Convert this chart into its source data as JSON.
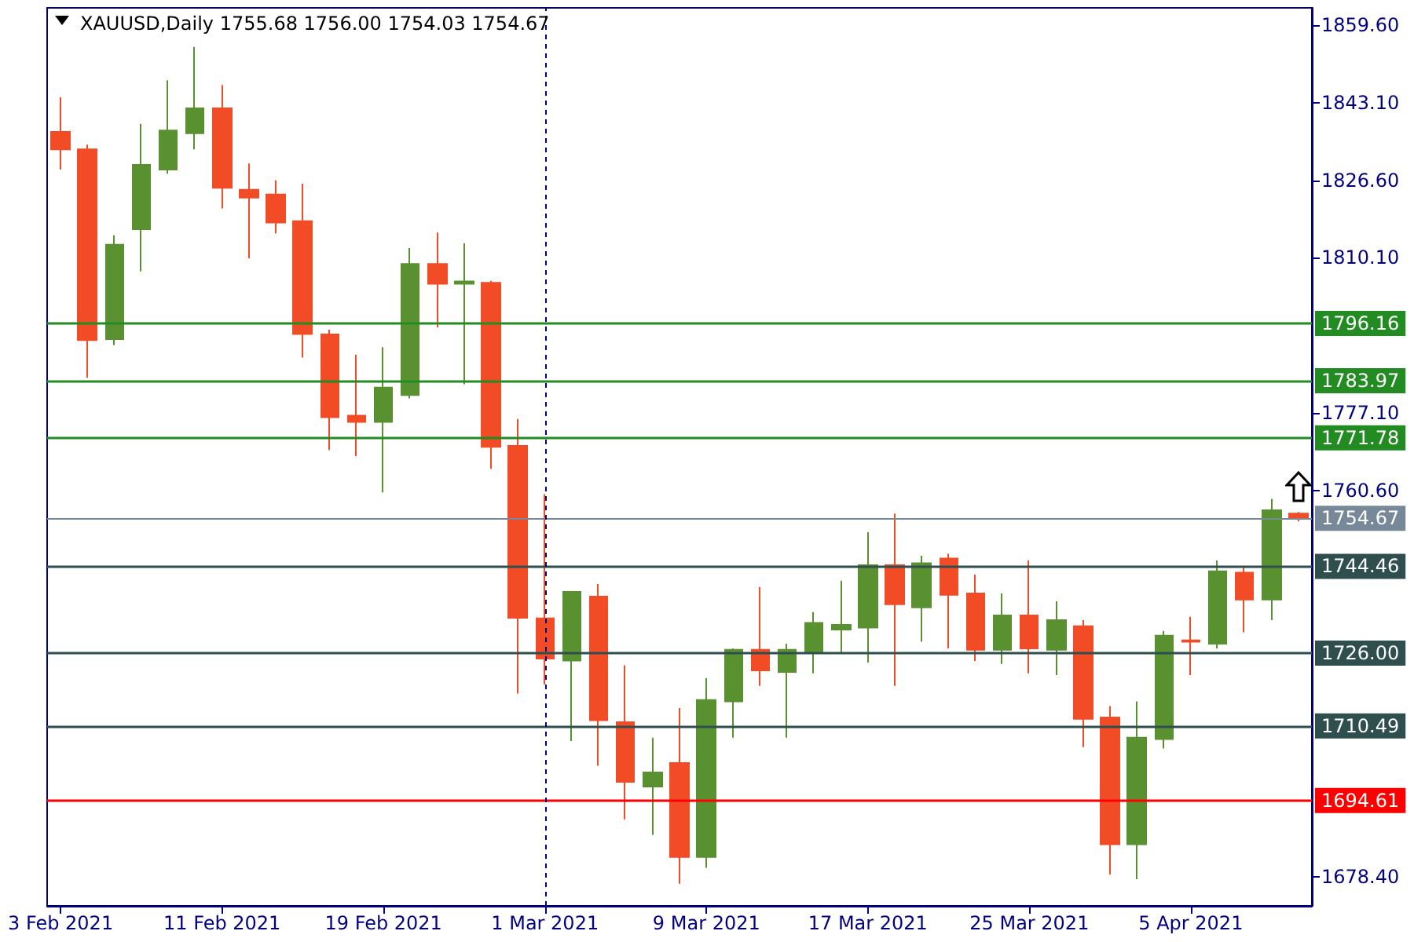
{
  "chart_data": {
    "type": "candlestick",
    "title": "XAUUSD,Daily 1755.68 1756.00 1754.03 1754.67",
    "categories": [
      "3 Feb 2021",
      null,
      null,
      null,
      null,
      null,
      "11 Feb 2021",
      null,
      null,
      null,
      null,
      null,
      "19 Feb 2021",
      null,
      null,
      null,
      null,
      null,
      "1 Mar 2021",
      null,
      null,
      null,
      null,
      null,
      "9 Mar 2021",
      null,
      null,
      null,
      null,
      null,
      "17 Mar 2021",
      null,
      null,
      null,
      null,
      null,
      "25 Mar 2021",
      null,
      null,
      null,
      null,
      null,
      "5 Apr 2021",
      null,
      null,
      null,
      null
    ],
    "ohlc": [
      [
        1836.9,
        1844.3,
        1828.9,
        1833.2
      ],
      [
        1833.2,
        1834.2,
        1784.6,
        1792.6
      ],
      [
        1792.8,
        1814.9,
        1791.5,
        1812.9
      ],
      [
        1816.2,
        1838.6,
        1807.2,
        1829.9
      ],
      [
        1828.9,
        1847.9,
        1828.0,
        1837.2
      ],
      [
        1836.6,
        1855.0,
        1833.2,
        1841.9
      ],
      [
        1841.9,
        1846.9,
        1820.6,
        1825.0
      ],
      [
        1824.6,
        1830.2,
        1810.0,
        1822.9
      ],
      [
        1823.6,
        1826.6,
        1815.3,
        1817.6
      ],
      [
        1817.9,
        1825.9,
        1788.9,
        1793.9
      ],
      [
        1793.8,
        1794.8,
        1769.2,
        1776.2
      ],
      [
        1776.5,
        1789.5,
        1767.9,
        1775.2
      ],
      [
        1775.2,
        1791.1,
        1760.2,
        1782.5
      ],
      [
        1780.9,
        1812.2,
        1780.2,
        1808.8
      ],
      [
        1808.8,
        1815.5,
        1795.3,
        1804.6
      ],
      [
        1804.6,
        1813.2,
        1783.2,
        1805.1
      ],
      [
        1804.8,
        1805.2,
        1765.2,
        1769.9
      ],
      [
        1770.1,
        1775.8,
        1717.4,
        1733.5
      ],
      [
        1733.4,
        1759.8,
        1719.3,
        1724.8
      ],
      [
        1724.4,
        1739.0,
        1707.3,
        1739.0
      ],
      [
        1738.0,
        1740.7,
        1702.0,
        1711.7
      ],
      [
        1711.3,
        1723.4,
        1690.6,
        1698.6
      ],
      [
        1697.6,
        1708.0,
        1687.3,
        1700.6
      ],
      [
        1702.6,
        1714.3,
        1676.9,
        1682.6
      ],
      [
        1682.6,
        1720.7,
        1680.3,
        1716.0
      ],
      [
        1715.7,
        1727.0,
        1708.0,
        1726.7
      ],
      [
        1726.7,
        1740.0,
        1719.0,
        1722.3
      ],
      [
        1722.0,
        1728.0,
        1708.0,
        1726.7
      ],
      [
        1726.3,
        1734.7,
        1721.7,
        1732.4
      ],
      [
        1731.0,
        1741.4,
        1726.0,
        1732.0
      ],
      [
        1731.4,
        1751.7,
        1724.0,
        1744.7
      ],
      [
        1744.7,
        1755.7,
        1719.0,
        1736.4
      ],
      [
        1735.7,
        1746.7,
        1728.4,
        1745.1
      ],
      [
        1746.1,
        1747.1,
        1727.0,
        1738.4
      ],
      [
        1738.7,
        1742.7,
        1724.3,
        1726.7
      ],
      [
        1726.7,
        1738.7,
        1723.7,
        1734.0
      ],
      [
        1734.0,
        1745.7,
        1721.7,
        1727.0
      ],
      [
        1726.7,
        1737.0,
        1721.3,
        1733.0
      ],
      [
        1731.7,
        1733.0,
        1706.0,
        1712.0
      ],
      [
        1712.3,
        1714.7,
        1678.9,
        1685.3
      ],
      [
        1685.3,
        1715.7,
        1677.9,
        1708.0
      ],
      [
        1707.7,
        1730.7,
        1705.7,
        1729.7
      ],
      [
        1728.7,
        1733.7,
        1721.3,
        1728.4
      ],
      [
        1728.0,
        1745.7,
        1727.0,
        1743.4
      ],
      [
        1743.1,
        1744.4,
        1730.4,
        1737.4
      ],
      [
        1737.4,
        1758.8,
        1733.0,
        1756.4
      ],
      [
        1755.68,
        1756.0,
        1754.03,
        1754.67
      ]
    ],
    "colors": [
      "#f24c27",
      "#f24c27",
      "#5a9130",
      "#5a9130",
      "#5a9130",
      "#5a9130",
      "#f24c27",
      "#f24c27",
      "#f24c27",
      "#f24c27",
      "#f24c27",
      "#f24c27",
      "#5a9130",
      "#5a9130",
      "#f24c27",
      "#5a9130",
      "#f24c27",
      "#f24c27",
      "#f24c27",
      "#5a9130",
      "#f24c27",
      "#f24c27",
      "#5a9130",
      "#f24c27",
      "#5a9130",
      "#5a9130",
      "#f24c27",
      "#5a9130",
      "#5a9130",
      "#5a9130",
      "#5a9130",
      "#f24c27",
      "#5a9130",
      "#f24c27",
      "#f24c27",
      "#5a9130",
      "#f24c27",
      "#5a9130",
      "#f24c27",
      "#f24c27",
      "#5a9130",
      "#5a9130",
      "#f24c27",
      "#5a9130",
      "#f24c27",
      "#5a9130",
      "#f24c27"
    ],
    "ylim": [
      1672.2,
      1863.3
    ],
    "yticks": [
      {
        "value": 1859.6,
        "label": "1859.60"
      },
      {
        "value": 1843.1,
        "label": "1843.10"
      },
      {
        "value": 1826.6,
        "label": "1826.60"
      },
      {
        "value": 1810.1,
        "label": "1810.10"
      },
      {
        "value": 1777.1,
        "label": "1777.10"
      },
      {
        "value": 1760.6,
        "label": "1760.60"
      },
      {
        "value": 1678.4,
        "label": "1678.40"
      }
    ],
    "ref_lines": [
      {
        "axis": "y",
        "value": 1796.16,
        "label": "1796.16",
        "color": "#228b22",
        "line_style": "solid"
      },
      {
        "axis": "y",
        "value": 1783.97,
        "label": "1783.97",
        "color": "#228b22",
        "line_style": "solid"
      },
      {
        "axis": "y",
        "value": 1771.78,
        "label": "1771.78",
        "color": "#228b22",
        "line_style": "solid"
      },
      {
        "axis": "y",
        "value": 1754.67,
        "label": "1754.67",
        "color": "#778899",
        "line_style": "solid"
      },
      {
        "axis": "y",
        "value": 1744.46,
        "label": "1744.46",
        "color": "#2f4f4f",
        "line_style": "solid"
      },
      {
        "axis": "y",
        "value": 1726.0,
        "label": "1726.00",
        "color": "#2f4f4f",
        "line_style": "solid"
      },
      {
        "axis": "y",
        "value": 1710.49,
        "label": "1710.49",
        "color": "#2f4f4f",
        "line_style": "solid"
      },
      {
        "axis": "y",
        "value": 1694.61,
        "label": "1694.61",
        "color": "#ff0000",
        "line_style": "solid"
      },
      {
        "axis": "x",
        "value": "1 Mar 2021",
        "color": "#000080",
        "line_style": "dashed"
      }
    ],
    "grid": false
  }
}
